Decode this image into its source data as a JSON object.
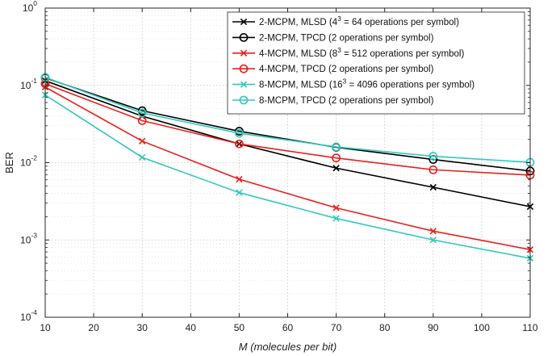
{
  "chart_data": {
    "type": "line",
    "title": "",
    "xlabel": {
      "italic_part": "M",
      "rest": " (molecules per bit)"
    },
    "ylabel": "BER",
    "xlim": [
      10,
      110
    ],
    "ylim": [
      0.0001,
      1
    ],
    "yscale": "log",
    "grid": "dotted major and minor",
    "legend_position": "top-right",
    "x_ticks": [
      10,
      20,
      30,
      40,
      50,
      60,
      70,
      80,
      90,
      100,
      110
    ],
    "y_ticks": [
      {
        "value": 0.0001,
        "base": "10",
        "exp": "-4"
      },
      {
        "value": 0.001,
        "base": "10",
        "exp": "-3"
      },
      {
        "value": 0.01,
        "base": "10",
        "exp": "-2"
      },
      {
        "value": 0.1,
        "base": "10",
        "exp": "-1"
      },
      {
        "value": 1,
        "base": "10",
        "exp": "0"
      }
    ],
    "x": [
      10,
      30,
      50,
      70,
      90,
      110
    ],
    "series": [
      {
        "name": "2-MCPM, MLSD (4^3 = 64 operations per symbol)",
        "legend_parts": [
          "2-MCPM, MLSD (4",
          "3",
          " = 64 operations per symbol)"
        ],
        "color": "#000000",
        "marker": "x",
        "values": [
          0.115,
          0.04,
          0.0175,
          0.0085,
          0.0048,
          0.0027
        ]
      },
      {
        "name": "2-MCPM, TPCD (2 operations per symbol)",
        "legend_parts": [
          "2-MCPM, TPCD (2 operations per symbol)"
        ],
        "color": "#000000",
        "marker": "o",
        "values": [
          0.125,
          0.047,
          0.0255,
          0.0158,
          0.011,
          0.0078
        ]
      },
      {
        "name": "4-MCPM, MLSD (8^3 = 512 operations per symbol)",
        "legend_parts": [
          "4-MCPM, MLSD (8",
          "3",
          " = 512 operations per symbol)"
        ],
        "color": "#e8201c",
        "marker": "x",
        "values": [
          0.095,
          0.019,
          0.0061,
          0.0026,
          0.0013,
          0.00075
        ]
      },
      {
        "name": "4-MCPM, TPCD (2 operations per symbol)",
        "legend_parts": [
          "4-MCPM, TPCD (2 operations per symbol)"
        ],
        "color": "#e8201c",
        "marker": "o",
        "values": [
          0.105,
          0.035,
          0.0175,
          0.0115,
          0.0081,
          0.0069
        ]
      },
      {
        "name": "8-MCPM, MLSD (16^3 = 4096 operations per symbol)",
        "legend_parts": [
          "8-MCPM, MLSD (16",
          "3",
          " = 4096 operations per symbol)"
        ],
        "color": "#33c9bb",
        "marker": "x",
        "values": [
          0.075,
          0.0117,
          0.0041,
          0.0019,
          0.001,
          0.00058
        ]
      },
      {
        "name": "8-MCPM, TPCD (2 operations per symbol)",
        "legend_parts": [
          "8-MCPM, TPCD (2 operations per symbol)"
        ],
        "color": "#33c9bb",
        "marker": "o",
        "values": [
          0.127,
          0.044,
          0.024,
          0.016,
          0.0121,
          0.0101
        ]
      }
    ]
  }
}
